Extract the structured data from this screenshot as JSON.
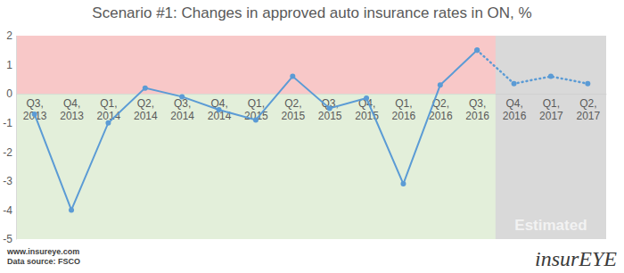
{
  "chart_data": {
    "type": "line",
    "title": "Scenario #1: Changes in approved auto insurance rates in ON, %",
    "categories": [
      "Q3, 2013",
      "Q4, 2013",
      "Q1, 2014",
      "Q2, 2014",
      "Q3, 2014",
      "Q4, 2014",
      "Q1, 2015",
      "Q2, 2015",
      "Q3, 2015",
      "Q4, 2015",
      "Q1, 2016",
      "Q2, 2016",
      "Q3, 2016",
      "Q4, 2016",
      "Q1, 2017",
      "Q2, 2017"
    ],
    "series": [
      {
        "color": "#5b9bd5",
        "marker": "circle",
        "line_style": "solid",
        "values": [
          -0.7,
          -4.0,
          -1.0,
          0.2,
          -0.1,
          -0.55,
          -0.9,
          0.6,
          -0.5,
          -0.15,
          -3.1,
          0.3,
          1.5,
          null,
          null,
          null
        ]
      },
      {
        "color": "#5b9bd5",
        "marker": "circle",
        "line_style": "dotted",
        "values": [
          null,
          null,
          null,
          null,
          null,
          null,
          null,
          null,
          null,
          null,
          null,
          null,
          1.5,
          0.35,
          0.6,
          0.35
        ]
      }
    ],
    "ylim": [
      -5,
      2
    ],
    "yticks": [
      -5,
      -4,
      -3,
      -2,
      -1,
      0,
      1,
      2
    ],
    "grid": false,
    "bands": [
      {
        "from": 0,
        "to": 2,
        "color": "#f8c8c8"
      },
      {
        "from": -5,
        "to": 0,
        "color": "#e3efda"
      }
    ],
    "annotations": [
      "Estimated"
    ],
    "source": [
      "www.insureye.com",
      "Data source: FSCO"
    ],
    "logo": "insurEYE"
  }
}
